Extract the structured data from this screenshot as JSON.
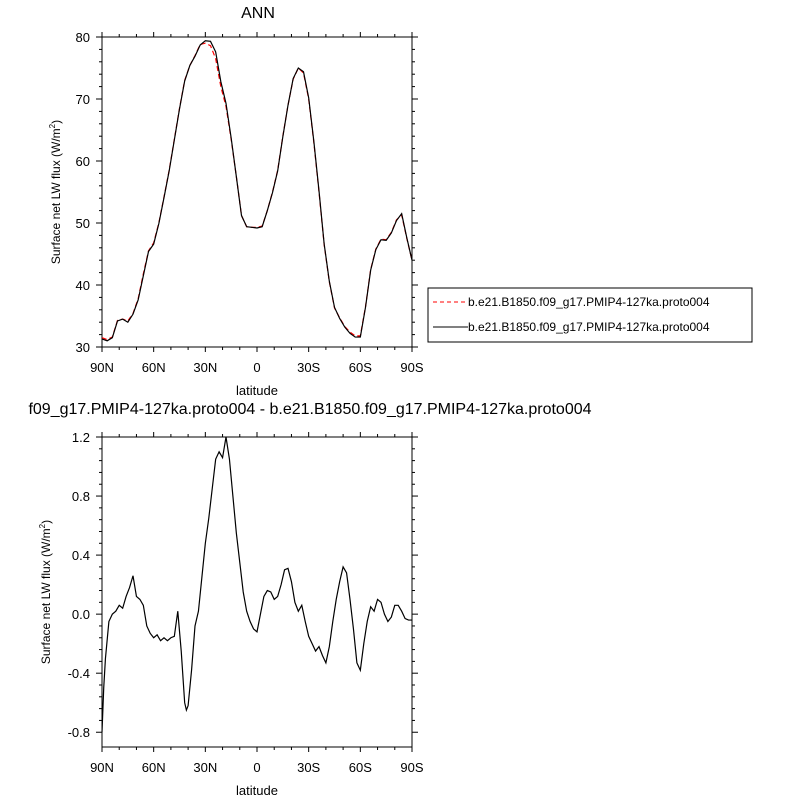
{
  "chart_data": [
    {
      "type": "line",
      "title": "ANN",
      "xlabel": "latitude",
      "ylabel": "Surface net LW flux (W/m",
      "ylabel_sup": "2",
      "ylabel_tail": ")",
      "xlim": [
        90,
        -90
      ],
      "ylim": [
        30,
        80
      ],
      "x_ticks": [
        90,
        60,
        30,
        0,
        -30,
        -60,
        -90
      ],
      "x_tick_labels": [
        "90N",
        "60N",
        "30N",
        "0",
        "30S",
        "60S",
        "90S"
      ],
      "y_ticks": [
        30,
        40,
        50,
        60,
        70,
        80
      ],
      "y_tick_labels": [
        "30",
        "40",
        "50",
        "60",
        "70",
        "80"
      ],
      "legend": "right",
      "x": [
        90,
        87,
        84,
        81,
        78,
        75,
        72,
        69,
        66,
        63,
        60,
        57,
        54,
        51,
        48,
        45,
        42,
        39,
        36,
        33,
        30,
        27,
        24,
        21,
        18,
        15,
        12,
        9,
        6,
        3,
        0,
        -3,
        -6,
        -9,
        -12,
        -15,
        -18,
        -21,
        -24,
        -27,
        -30,
        -33,
        -36,
        -39,
        -42,
        -45,
        -48,
        -51,
        -54,
        -57,
        -60,
        -63,
        -66,
        -69,
        -72,
        -75,
        -78,
        -81,
        -84,
        -87,
        -90
      ],
      "series": [
        {
          "name": "b.e21.B1850.f09_g17.PMIP4-127ka.proto004",
          "color": "#ff0000",
          "dash": true,
          "values": [
            31.5,
            31.2,
            31.6,
            34.3,
            34.5,
            34.2,
            35.4,
            37.8,
            41.8,
            45.5,
            46.8,
            50.0,
            54.2,
            58.5,
            63.5,
            68.5,
            73.0,
            75.4,
            77.0,
            78.8,
            79.0,
            78.6,
            76.5,
            72.0,
            68.8,
            63.5,
            57.5,
            51.2,
            49.4,
            49.3,
            49.3,
            49.5,
            52.0,
            55.0,
            58.5,
            64.0,
            69.0,
            73.2,
            75.0,
            74.2,
            70.0,
            63.0,
            55.0,
            46.5,
            40.5,
            36.3,
            34.7,
            33.3,
            32.4,
            31.8,
            31.8,
            36.5,
            42.5,
            45.8,
            47.4,
            47.3,
            48.5,
            50.5,
            51.3,
            47.5,
            44.0
          ]
        },
        {
          "name": "b.e21.B1850.f09_g17.PMIP4-127ka.proto004",
          "color": "#000000",
          "dash": false,
          "values": [
            31.3,
            31.0,
            31.5,
            34.2,
            34.5,
            34.0,
            35.3,
            37.6,
            41.5,
            45.4,
            46.6,
            49.9,
            54.1,
            58.4,
            63.4,
            68.4,
            72.9,
            75.4,
            76.9,
            78.7,
            79.4,
            79.3,
            77.6,
            72.8,
            69.3,
            63.7,
            57.5,
            51.2,
            49.4,
            49.3,
            49.2,
            49.4,
            52.0,
            54.9,
            58.4,
            63.9,
            69.0,
            73.3,
            75.0,
            74.4,
            70.2,
            63.2,
            55.2,
            46.6,
            40.6,
            36.4,
            34.6,
            33.2,
            32.2,
            31.6,
            31.6,
            36.4,
            42.4,
            45.7,
            47.3,
            47.2,
            48.4,
            50.4,
            51.5,
            47.6,
            44.0
          ]
        }
      ]
    },
    {
      "type": "line",
      "title": "f09_g17.PMIP4-127ka.proto004 - b.e21.B1850.f09_g17.PMIP4-127ka.proto004",
      "xlabel": "latitude",
      "ylabel": "Surface net LW flux (W/m",
      "ylabel_sup": "2",
      "ylabel_tail": ")",
      "xlim": [
        90,
        -90
      ],
      "ylim": [
        -0.9,
        1.2
      ],
      "x_ticks": [
        90,
        60,
        30,
        0,
        -30,
        -60,
        -90
      ],
      "x_tick_labels": [
        "90N",
        "60N",
        "30N",
        "0",
        "30S",
        "60S",
        "90S"
      ],
      "y_ticks": [
        -0.8,
        -0.4,
        0.0,
        0.4,
        0.8,
        1.2
      ],
      "y_tick_labels": [
        "-0.8",
        "-0.4",
        "0.0",
        "0.4",
        "0.8",
        "1.2"
      ],
      "x": [
        90,
        89,
        88,
        86,
        84,
        82,
        80,
        78,
        76,
        74,
        72,
        70,
        68,
        66,
        64,
        62,
        60,
        58,
        56,
        54,
        52,
        50,
        48,
        46,
        44,
        42,
        41,
        40,
        38,
        36,
        34,
        32,
        30,
        28,
        26,
        24,
        22,
        20,
        18,
        16,
        14,
        12,
        10,
        8,
        6,
        4,
        2,
        0,
        -2,
        -4,
        -6,
        -8,
        -10,
        -12,
        -14,
        -16,
        -18,
        -20,
        -22,
        -24,
        -26,
        -28,
        -30,
        -32,
        -34,
        -36,
        -38,
        -40,
        -42,
        -44,
        -46,
        -48,
        -50,
        -52,
        -54,
        -56,
        -58,
        -60,
        -62,
        -64,
        -66,
        -68,
        -70,
        -72,
        -74,
        -76,
        -78,
        -80,
        -82,
        -84,
        -86,
        -88,
        -90
      ],
      "series": [
        {
          "name": "",
          "color": "#000000",
          "dash": false,
          "values": [
            -0.8,
            -0.5,
            -0.3,
            -0.05,
            0.0,
            0.02,
            0.06,
            0.04,
            0.12,
            0.18,
            0.26,
            0.12,
            0.1,
            0.06,
            -0.08,
            -0.13,
            -0.16,
            -0.14,
            -0.18,
            -0.16,
            -0.18,
            -0.16,
            -0.15,
            0.02,
            -0.25,
            -0.6,
            -0.65,
            -0.62,
            -0.38,
            -0.08,
            0.02,
            0.25,
            0.48,
            0.65,
            0.85,
            1.05,
            1.1,
            1.06,
            1.2,
            1.05,
            0.8,
            0.55,
            0.35,
            0.15,
            0.02,
            -0.05,
            -0.1,
            -0.12,
            0.0,
            0.12,
            0.16,
            0.15,
            0.1,
            0.12,
            0.2,
            0.3,
            0.31,
            0.22,
            0.08,
            0.02,
            0.06,
            -0.05,
            -0.15,
            -0.2,
            -0.25,
            -0.22,
            -0.28,
            -0.33,
            -0.22,
            -0.05,
            0.1,
            0.22,
            0.32,
            0.28,
            0.1,
            -0.1,
            -0.33,
            -0.38,
            -0.2,
            -0.05,
            0.05,
            0.02,
            0.1,
            0.08,
            0.0,
            -0.05,
            -0.02,
            0.06,
            0.06,
            0.02,
            -0.03,
            -0.04,
            -0.04
          ]
        }
      ]
    }
  ]
}
